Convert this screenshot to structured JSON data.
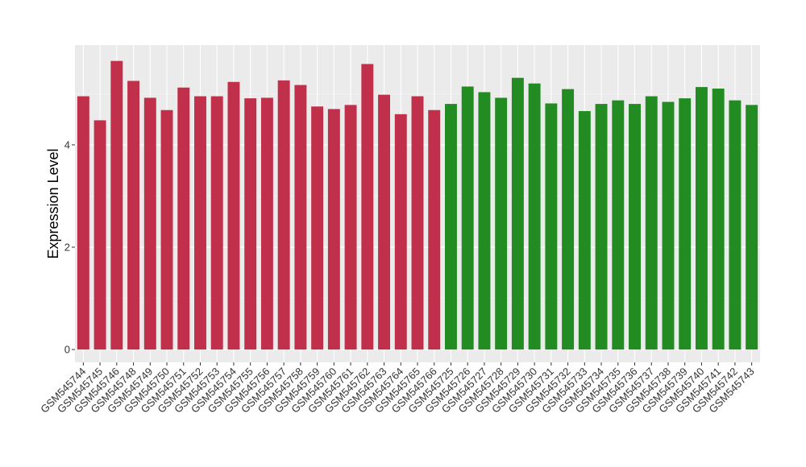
{
  "chart_data": {
    "type": "bar",
    "title": "",
    "xlabel": "",
    "ylabel": "Expression Level",
    "ylim": [
      -0.25,
      5.95
    ],
    "yticks": [
      0,
      2,
      4
    ],
    "grid": true,
    "legend": "none",
    "background": "#EBEBEB",
    "categories": [
      "GSM545744",
      "GSM545745",
      "GSM545746",
      "GSM545748",
      "GSM545749",
      "GSM545750",
      "GSM545751",
      "GSM545752",
      "GSM545753",
      "GSM545754",
      "GSM545755",
      "GSM545756",
      "GSM545757",
      "GSM545758",
      "GSM545759",
      "GSM545760",
      "GSM545761",
      "GSM545762",
      "GSM545763",
      "GSM545764",
      "GSM545765",
      "GSM545766",
      "GSM545725",
      "GSM545726",
      "GSM545727",
      "GSM545728",
      "GSM545729",
      "GSM545730",
      "GSM545731",
      "GSM545732",
      "GSM545733",
      "GSM545734",
      "GSM545735",
      "GSM545736",
      "GSM545737",
      "GSM545738",
      "GSM545739",
      "GSM545740",
      "GSM545741",
      "GSM545742",
      "GSM545743"
    ],
    "values": [
      4.95,
      4.48,
      5.64,
      5.25,
      4.92,
      4.68,
      5.12,
      4.95,
      4.95,
      5.23,
      4.91,
      4.92,
      5.26,
      5.17,
      4.75,
      4.7,
      4.78,
      5.58,
      4.98,
      4.6,
      4.95,
      4.68,
      4.8,
      5.14,
      5.03,
      4.92,
      5.31,
      5.2,
      4.81,
      5.09,
      4.66,
      4.8,
      4.87,
      4.8,
      4.95,
      4.84,
      4.91,
      5.13,
      5.1,
      4.87,
      4.78
    ],
    "colors": [
      "#C0304A",
      "#C0304A",
      "#C0304A",
      "#C0304A",
      "#C0304A",
      "#C0304A",
      "#C0304A",
      "#C0304A",
      "#C0304A",
      "#C0304A",
      "#C0304A",
      "#C0304A",
      "#C0304A",
      "#C0304A",
      "#C0304A",
      "#C0304A",
      "#C0304A",
      "#C0304A",
      "#C0304A",
      "#C0304A",
      "#C0304A",
      "#C0304A",
      "#228B22",
      "#228B22",
      "#228B22",
      "#228B22",
      "#228B22",
      "#228B22",
      "#228B22",
      "#228B22",
      "#228B22",
      "#228B22",
      "#228B22",
      "#228B22",
      "#228B22",
      "#228B22",
      "#228B22",
      "#228B22",
      "#228B22",
      "#228B22",
      "#228B22"
    ]
  }
}
